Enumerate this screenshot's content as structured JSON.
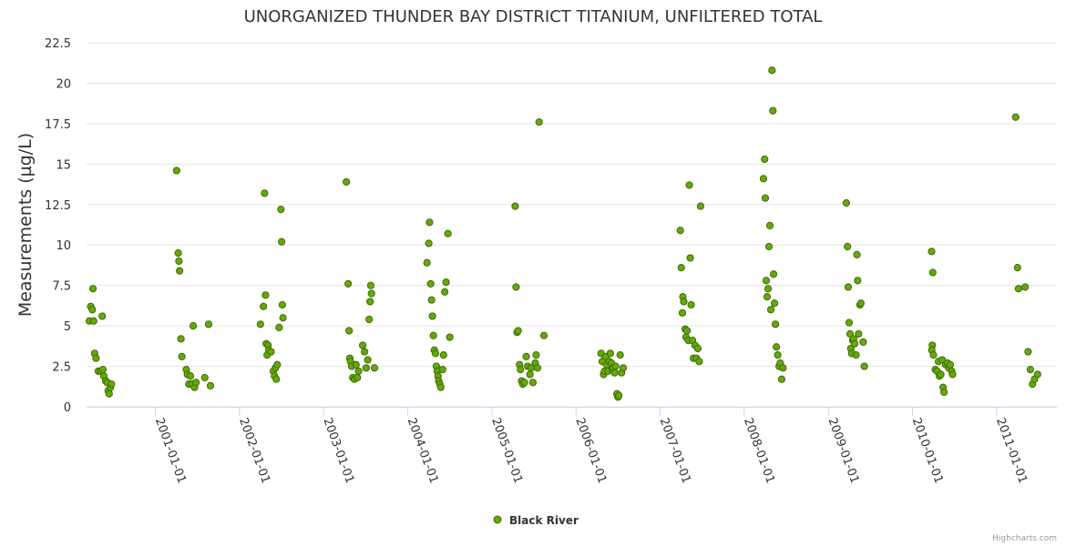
{
  "chart_data": {
    "type": "scatter",
    "title": "UNORGANIZED THUNDER BAY DISTRICT TITANIUM, UNFILTERED TOTAL",
    "ylabel": "Measurements (µg/L)",
    "xlabel": "",
    "ylim": [
      0,
      22.5
    ],
    "xlim": [
      "2000-03-08",
      "2011-09-20"
    ],
    "yticks": [
      "0",
      "2.5",
      "5",
      "7.5",
      "10",
      "12.5",
      "15",
      "17.5",
      "20",
      "22.5"
    ],
    "xticks": [
      "2001-01-01",
      "2002-01-01",
      "2003-01-01",
      "2004-01-01",
      "2005-01-01",
      "2006-01-01",
      "2007-01-01",
      "2008-01-01",
      "2009-01-01",
      "2010-01-01",
      "2011-01-01"
    ],
    "grid": true,
    "legend_position": "bottom-center",
    "series": [
      {
        "name": "Black River",
        "color": "#66a80f",
        "points": [
          [
            "2000-03-20",
            5.3
          ],
          [
            "2000-03-26",
            6.2
          ],
          [
            "2000-04-02",
            6.0
          ],
          [
            "2000-04-05",
            7.3
          ],
          [
            "2000-04-08",
            5.3
          ],
          [
            "2000-04-12",
            3.3
          ],
          [
            "2000-04-18",
            3.0
          ],
          [
            "2000-04-28",
            2.2
          ],
          [
            "2000-05-08",
            2.2
          ],
          [
            "2000-05-15",
            5.6
          ],
          [
            "2000-05-18",
            2.3
          ],
          [
            "2000-05-22",
            1.9
          ],
          [
            "2000-05-30",
            1.6
          ],
          [
            "2000-06-06",
            1.5
          ],
          [
            "2000-06-10",
            1.0
          ],
          [
            "2000-06-14",
            0.8
          ],
          [
            "2000-06-20",
            1.2
          ],
          [
            "2000-06-24",
            1.4
          ],
          [
            "2001-04-03",
            14.6
          ],
          [
            "2001-04-10",
            9.5
          ],
          [
            "2001-04-13",
            9.0
          ],
          [
            "2001-04-16",
            8.4
          ],
          [
            "2001-04-22",
            4.2
          ],
          [
            "2001-04-26",
            3.1
          ],
          [
            "2001-05-15",
            2.3
          ],
          [
            "2001-05-20",
            2.0
          ],
          [
            "2001-05-26",
            1.4
          ],
          [
            "2001-06-02",
            1.9
          ],
          [
            "2001-06-08",
            1.4
          ],
          [
            "2001-06-14",
            5.0
          ],
          [
            "2001-06-20",
            1.2
          ],
          [
            "2001-06-26",
            1.5
          ],
          [
            "2001-08-03",
            1.8
          ],
          [
            "2001-08-20",
            5.1
          ],
          [
            "2001-08-28",
            1.3
          ],
          [
            "2002-04-02",
            5.1
          ],
          [
            "2002-04-15",
            6.2
          ],
          [
            "2002-04-20",
            13.2
          ],
          [
            "2002-04-24",
            6.9
          ],
          [
            "2002-04-27",
            3.9
          ],
          [
            "2002-05-01",
            3.2
          ],
          [
            "2002-05-05",
            3.8
          ],
          [
            "2002-05-08",
            3.5
          ],
          [
            "2002-05-18",
            3.4
          ],
          [
            "2002-05-28",
            2.2
          ],
          [
            "2002-06-02",
            1.9
          ],
          [
            "2002-06-06",
            2.4
          ],
          [
            "2002-06-10",
            1.7
          ],
          [
            "2002-06-14",
            2.6
          ],
          [
            "2002-06-22",
            4.9
          ],
          [
            "2002-06-30",
            12.2
          ],
          [
            "2002-07-03",
            10.2
          ],
          [
            "2002-07-06",
            6.3
          ],
          [
            "2002-07-09",
            5.5
          ],
          [
            "2003-04-10",
            13.9
          ],
          [
            "2003-04-18",
            7.6
          ],
          [
            "2003-04-22",
            4.7
          ],
          [
            "2003-04-25",
            3.0
          ],
          [
            "2003-04-28",
            2.8
          ],
          [
            "2003-05-03",
            2.5
          ],
          [
            "2003-05-08",
            1.8
          ],
          [
            "2003-05-15",
            1.7
          ],
          [
            "2003-05-22",
            2.6
          ],
          [
            "2003-05-28",
            1.8
          ],
          [
            "2003-06-02",
            2.2
          ],
          [
            "2003-06-20",
            3.8
          ],
          [
            "2003-06-28",
            3.4
          ],
          [
            "2003-07-05",
            2.4
          ],
          [
            "2003-07-12",
            2.9
          ],
          [
            "2003-07-18",
            5.4
          ],
          [
            "2003-07-22",
            6.5
          ],
          [
            "2003-07-25",
            7.5
          ],
          [
            "2003-07-28",
            7.0
          ],
          [
            "2003-08-10",
            2.4
          ],
          [
            "2004-03-25",
            8.9
          ],
          [
            "2004-04-02",
            10.1
          ],
          [
            "2004-04-05",
            11.4
          ],
          [
            "2004-04-10",
            7.6
          ],
          [
            "2004-04-14",
            6.6
          ],
          [
            "2004-04-18",
            5.6
          ],
          [
            "2004-04-22",
            4.4
          ],
          [
            "2004-04-26",
            3.5
          ],
          [
            "2004-05-01",
            3.3
          ],
          [
            "2004-05-05",
            2.5
          ],
          [
            "2004-05-09",
            2.2
          ],
          [
            "2004-05-12",
            1.9
          ],
          [
            "2004-05-15",
            1.6
          ],
          [
            "2004-05-20",
            1.4
          ],
          [
            "2004-05-24",
            1.2
          ],
          [
            "2004-06-01",
            2.3
          ],
          [
            "2004-06-05",
            3.2
          ],
          [
            "2004-06-10",
            7.1
          ],
          [
            "2004-06-16",
            7.7
          ],
          [
            "2004-06-24",
            10.7
          ],
          [
            "2004-07-02",
            4.3
          ],
          [
            "2005-04-12",
            12.4
          ],
          [
            "2005-04-16",
            7.4
          ],
          [
            "2005-04-20",
            4.6
          ],
          [
            "2005-04-25",
            4.7
          ],
          [
            "2005-05-01",
            2.6
          ],
          [
            "2005-05-05",
            2.3
          ],
          [
            "2005-05-10",
            1.6
          ],
          [
            "2005-05-15",
            1.4
          ],
          [
            "2005-05-22",
            1.5
          ],
          [
            "2005-05-30",
            3.1
          ],
          [
            "2005-06-05",
            2.5
          ],
          [
            "2005-06-15",
            2.0
          ],
          [
            "2005-06-20",
            2.4
          ],
          [
            "2005-06-28",
            1.5
          ],
          [
            "2005-07-08",
            2.7
          ],
          [
            "2005-07-12",
            3.2
          ],
          [
            "2005-07-18",
            2.4
          ],
          [
            "2005-07-25",
            17.6
          ],
          [
            "2005-08-15",
            4.4
          ],
          [
            "2006-04-20",
            3.3
          ],
          [
            "2006-04-25",
            2.8
          ],
          [
            "2006-05-01",
            2.0
          ],
          [
            "2006-05-05",
            2.2
          ],
          [
            "2006-05-10",
            3.1
          ],
          [
            "2006-05-15",
            2.6
          ],
          [
            "2006-05-20",
            2.2
          ],
          [
            "2006-05-25",
            2.8
          ],
          [
            "2006-05-30",
            3.3
          ],
          [
            "2006-06-04",
            2.7
          ],
          [
            "2006-06-08",
            2.3
          ],
          [
            "2006-06-12",
            2.4
          ],
          [
            "2006-06-18",
            2.1
          ],
          [
            "2006-06-22",
            2.5
          ],
          [
            "2006-06-28",
            0.8
          ],
          [
            "2006-07-02",
            0.6
          ],
          [
            "2006-07-06",
            0.7
          ],
          [
            "2006-07-12",
            3.2
          ],
          [
            "2006-07-18",
            2.1
          ],
          [
            "2006-07-25",
            2.4
          ],
          [
            "2007-03-30",
            10.9
          ],
          [
            "2007-04-03",
            8.6
          ],
          [
            "2007-04-08",
            5.8
          ],
          [
            "2007-04-10",
            6.8
          ],
          [
            "2007-04-14",
            6.5
          ],
          [
            "2007-04-20",
            4.8
          ],
          [
            "2007-04-24",
            4.3
          ],
          [
            "2007-04-28",
            4.7
          ],
          [
            "2007-05-04",
            4.1
          ],
          [
            "2007-05-08",
            13.7
          ],
          [
            "2007-05-12",
            9.2
          ],
          [
            "2007-05-16",
            6.3
          ],
          [
            "2007-05-22",
            4.1
          ],
          [
            "2007-05-26",
            3.0
          ],
          [
            "2007-06-02",
            3.8
          ],
          [
            "2007-06-08",
            3.0
          ],
          [
            "2007-06-14",
            3.6
          ],
          [
            "2007-06-20",
            2.8
          ],
          [
            "2007-06-26",
            12.4
          ],
          [
            "2008-03-25",
            14.1
          ],
          [
            "2008-03-30",
            15.3
          ],
          [
            "2008-04-02",
            12.9
          ],
          [
            "2008-04-06",
            7.8
          ],
          [
            "2008-04-10",
            6.8
          ],
          [
            "2008-04-14",
            7.3
          ],
          [
            "2008-04-18",
            9.9
          ],
          [
            "2008-04-22",
            11.2
          ],
          [
            "2008-04-26",
            6.0
          ],
          [
            "2008-05-01",
            20.8
          ],
          [
            "2008-05-05",
            18.3
          ],
          [
            "2008-05-08",
            8.2
          ],
          [
            "2008-05-12",
            6.4
          ],
          [
            "2008-05-16",
            5.1
          ],
          [
            "2008-05-20",
            3.7
          ],
          [
            "2008-05-26",
            3.2
          ],
          [
            "2008-06-01",
            2.5
          ],
          [
            "2008-06-06",
            2.7
          ],
          [
            "2008-06-12",
            1.7
          ],
          [
            "2008-06-18",
            2.4
          ],
          [
            "2009-03-20",
            12.6
          ],
          [
            "2009-03-25",
            9.9
          ],
          [
            "2009-03-28",
            7.4
          ],
          [
            "2009-04-01",
            5.2
          ],
          [
            "2009-04-05",
            4.5
          ],
          [
            "2009-04-08",
            3.6
          ],
          [
            "2009-04-12",
            3.3
          ],
          [
            "2009-04-16",
            4.1
          ],
          [
            "2009-04-20",
            4.2
          ],
          [
            "2009-04-25",
            3.9
          ],
          [
            "2009-05-01",
            3.2
          ],
          [
            "2009-05-05",
            9.4
          ],
          [
            "2009-05-08",
            7.8
          ],
          [
            "2009-05-12",
            4.5
          ],
          [
            "2009-05-18",
            6.3
          ],
          [
            "2009-05-22",
            6.4
          ],
          [
            "2009-06-01",
            4.0
          ],
          [
            "2009-06-06",
            2.5
          ],
          [
            "2010-03-25",
            9.6
          ],
          [
            "2010-03-30",
            8.3
          ],
          [
            "2010-03-28",
            3.8
          ],
          [
            "2010-03-26",
            3.5
          ],
          [
            "2010-04-02",
            3.2
          ],
          [
            "2010-04-10",
            2.3
          ],
          [
            "2010-04-18",
            2.2
          ],
          [
            "2010-04-24",
            2.8
          ],
          [
            "2010-04-28",
            1.9
          ],
          [
            "2010-05-04",
            2.0
          ],
          [
            "2010-05-10",
            2.9
          ],
          [
            "2010-05-14",
            1.2
          ],
          [
            "2010-05-18",
            0.9
          ],
          [
            "2010-05-25",
            2.6
          ],
          [
            "2010-06-02",
            2.7
          ],
          [
            "2010-06-08",
            2.4
          ],
          [
            "2010-06-14",
            2.6
          ],
          [
            "2010-06-20",
            2.2
          ],
          [
            "2010-06-24",
            2.0
          ],
          [
            "2011-03-25",
            17.9
          ],
          [
            "2011-04-02",
            8.6
          ],
          [
            "2011-04-06",
            7.3
          ],
          [
            "2011-05-05",
            7.4
          ],
          [
            "2011-05-18",
            3.4
          ],
          [
            "2011-05-28",
            2.3
          ],
          [
            "2011-06-06",
            1.4
          ],
          [
            "2011-06-15",
            1.7
          ],
          [
            "2011-06-28",
            2.0
          ]
        ]
      }
    ],
    "credits": "Highcharts.com"
  }
}
